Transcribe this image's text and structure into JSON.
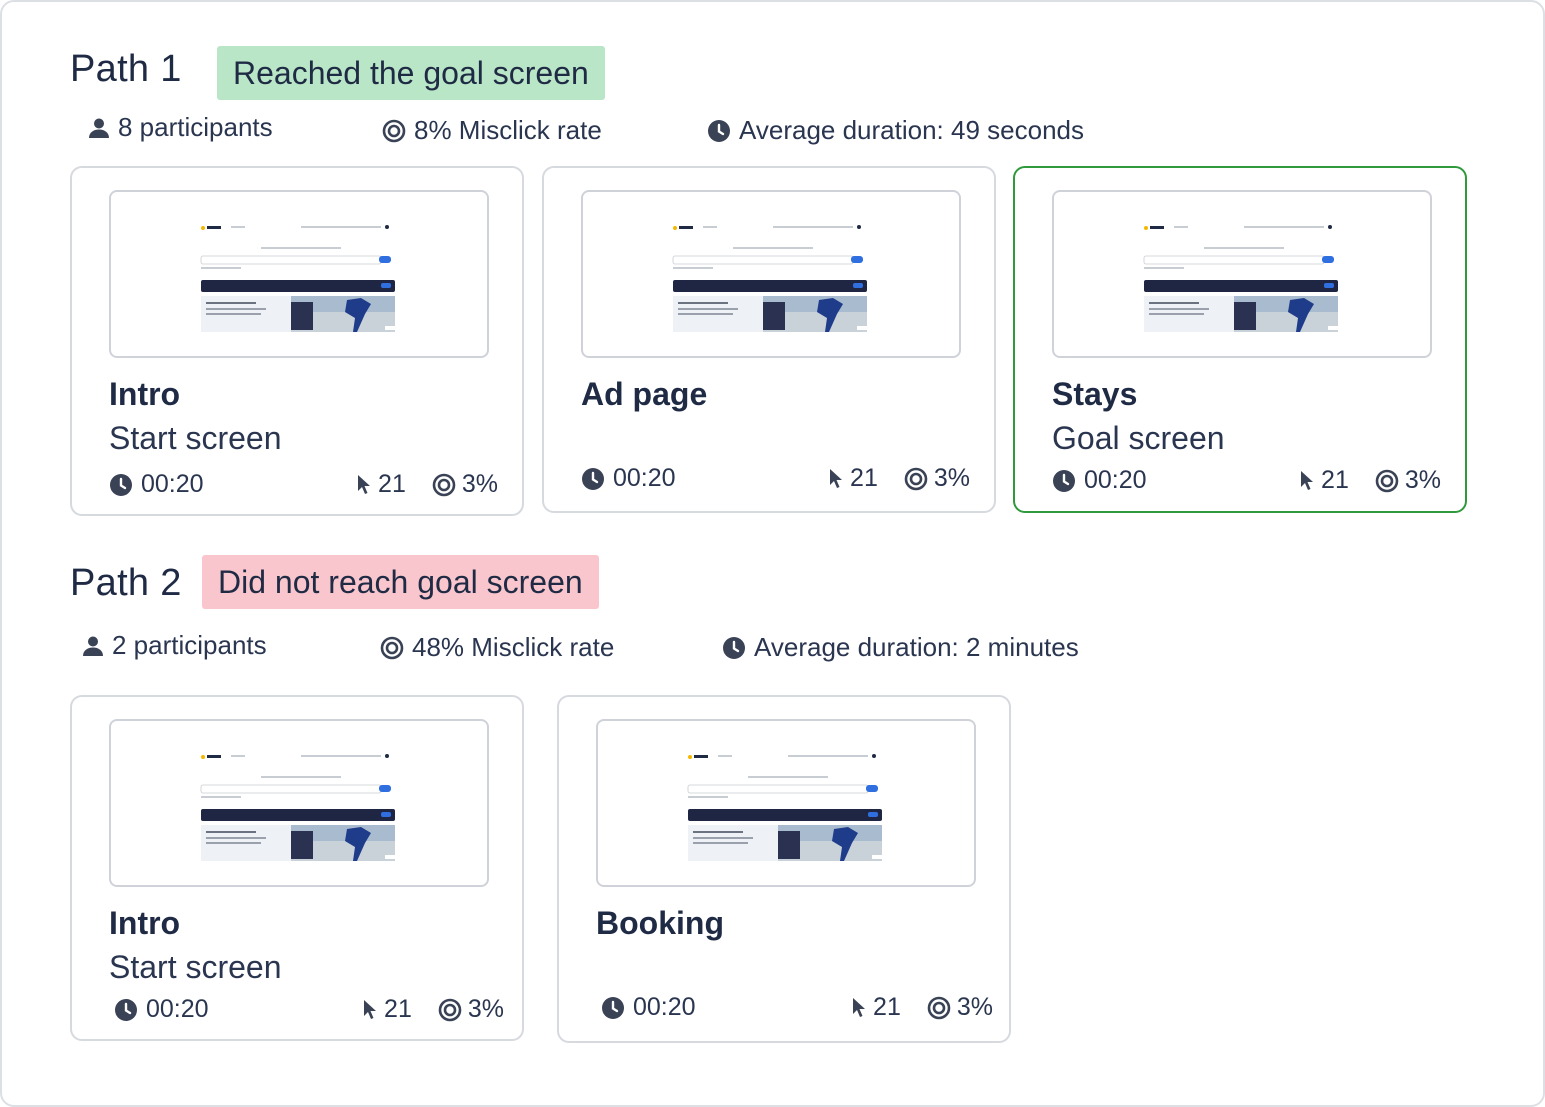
{
  "paths": [
    {
      "title": "Path 1",
      "status": "Reached the goal screen",
      "participants": "8 participants",
      "misclick": "8% Misclick rate",
      "duration": "Average duration: 49 seconds",
      "cards": [
        {
          "name": "Intro",
          "subtitle": "Start screen",
          "time": "00:20",
          "clicks": "21",
          "misclick": "3%"
        },
        {
          "name": "Ad page",
          "subtitle": "",
          "time": "00:20",
          "clicks": "21",
          "misclick": "3%"
        },
        {
          "name": "Stays",
          "subtitle": "Goal screen",
          "time": "00:20",
          "clicks": "21",
          "misclick": "3%"
        }
      ]
    },
    {
      "title": "Path 2",
      "status": "Did not reach goal screen",
      "participants": "2 participants",
      "misclick": "48% Misclick rate",
      "duration": "Average duration: 2 minutes",
      "cards": [
        {
          "name": "Intro",
          "subtitle": "Start screen",
          "time": "00:20",
          "clicks": "21",
          "misclick": "3%"
        },
        {
          "name": "Booking",
          "subtitle": "",
          "time": "00:20",
          "clicks": "21",
          "misclick": "3%"
        }
      ]
    }
  ],
  "colors": {
    "success_badge": "#b9e6c6",
    "fail_badge": "#f8c6cc",
    "goal_border": "#2e9a3c",
    "text": "#1f2a44"
  },
  "icons": {
    "participants": "person-icon",
    "misclick": "target-icon",
    "duration": "clock-icon",
    "clicks": "cursor-icon"
  }
}
